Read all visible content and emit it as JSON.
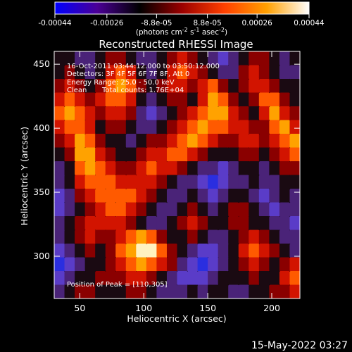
{
  "colorbar": {
    "tick_labels": [
      "-0.00044",
      "-0.00026",
      "-8.8e-05",
      "8.8e-05",
      "0.00026",
      "0.00044"
    ],
    "tick_values": [
      -0.00044,
      -0.00026,
      -8.8e-05,
      8.8e-05,
      0.00026,
      0.00044
    ],
    "range": [
      -0.00044,
      0.00044
    ],
    "units_prefix": "(photons cm",
    "units_exp1": "-2",
    "units_mid": " s",
    "units_exp2": "-1",
    "units_mid2": " asec",
    "units_exp3": "-2",
    "units_suffix": ")",
    "colors": [
      "#0000ff",
      "#4b0096",
      "#000000",
      "#9b0000",
      "#ff4000",
      "#ffa000",
      "#ffffff"
    ]
  },
  "chart_data": {
    "type": "heatmap",
    "title": "Reconstructed RHESSI Image",
    "xlabel": "Heliocentric X (arcsec)",
    "ylabel": "Heliocentric Y (arcsec)",
    "xlim": [
      30,
      222
    ],
    "ylim": [
      267,
      460
    ],
    "x_ticks": [
      50,
      100,
      150,
      200
    ],
    "y_ticks": [
      300,
      350,
      400,
      450
    ],
    "x_tick_labels": [
      "50",
      "100",
      "150",
      "200"
    ],
    "y_tick_labels": [
      "300",
      "350",
      "400",
      "450"
    ],
    "peak": [
      110,
      305
    ],
    "rows": [
      [
        0,
        0,
        -1,
        -1,
        0,
        1,
        1,
        0,
        -1,
        -1,
        0,
        1,
        2,
        1,
        0,
        -1,
        -2,
        -1,
        0,
        1,
        1,
        0,
        -1,
        0
      ],
      [
        0,
        1,
        0,
        -1,
        0,
        2,
        3,
        2,
        0,
        -1,
        0,
        2,
        3,
        2,
        1,
        0,
        -1,
        -1,
        1,
        2,
        1,
        0,
        -1,
        -1
      ],
      [
        1,
        2,
        1,
        0,
        1,
        3,
        4,
        3,
        1,
        0,
        1,
        2,
        2,
        1,
        2,
        3,
        1,
        0,
        1,
        2,
        2,
        1,
        0,
        0
      ],
      [
        2,
        3,
        2,
        1,
        2,
        3,
        3,
        2,
        0,
        -1,
        0,
        1,
        1,
        0,
        2,
        4,
        3,
        1,
        0,
        1,
        3,
        3,
        1,
        0
      ],
      [
        3,
        4,
        3,
        2,
        1,
        2,
        2,
        1,
        -1,
        -2,
        -1,
        0,
        1,
        2,
        3,
        4,
        4,
        2,
        1,
        0,
        2,
        4,
        2,
        1
      ],
      [
        2,
        3,
        3,
        2,
        0,
        1,
        1,
        0,
        -1,
        -1,
        0,
        1,
        2,
        3,
        4,
        3,
        3,
        2,
        2,
        1,
        1,
        3,
        4,
        2
      ],
      [
        1,
        2,
        4,
        3,
        1,
        0,
        0,
        -1,
        0,
        1,
        1,
        2,
        3,
        4,
        3,
        2,
        1,
        1,
        2,
        2,
        1,
        2,
        3,
        4
      ],
      [
        0,
        1,
        4,
        4,
        2,
        1,
        0,
        0,
        1,
        2,
        2,
        3,
        3,
        2,
        1,
        0,
        0,
        0,
        1,
        1,
        0,
        1,
        2,
        3
      ],
      [
        -1,
        0,
        3,
        4,
        3,
        2,
        1,
        1,
        2,
        3,
        2,
        2,
        1,
        0,
        -1,
        -1,
        -2,
        -1,
        0,
        0,
        -1,
        0,
        1,
        1
      ],
      [
        -1,
        0,
        2,
        3,
        3,
        3,
        2,
        2,
        2,
        2,
        1,
        0,
        -1,
        -1,
        -2,
        -3,
        -2,
        -1,
        -1,
        0,
        -1,
        -1,
        0,
        0
      ],
      [
        -2,
        -1,
        1,
        2,
        3,
        3,
        3,
        3,
        2,
        1,
        0,
        -1,
        -1,
        0,
        -1,
        -2,
        -1,
        0,
        0,
        -1,
        -2,
        -1,
        0,
        -1
      ],
      [
        -2,
        -1,
        0,
        1,
        2,
        3,
        3,
        2,
        1,
        0,
        -1,
        -1,
        0,
        1,
        0,
        -1,
        0,
        1,
        1,
        0,
        -1,
        -2,
        -1,
        -1
      ],
      [
        -1,
        0,
        1,
        2,
        2,
        2,
        2,
        1,
        0,
        -1,
        -1,
        0,
        1,
        2,
        1,
        0,
        0,
        1,
        1,
        0,
        0,
        -1,
        -1,
        -2
      ],
      [
        -1,
        0,
        1,
        2,
        1,
        1,
        2,
        3,
        4,
        3,
        1,
        0,
        0,
        1,
        0,
        -1,
        -1,
        0,
        1,
        2,
        1,
        0,
        -1,
        -1
      ],
      [
        -2,
        -1,
        0,
        1,
        0,
        1,
        3,
        4,
        5,
        5,
        3,
        1,
        0,
        -1,
        -2,
        -2,
        -1,
        0,
        2,
        3,
        2,
        1,
        0,
        -1
      ],
      [
        -3,
        -2,
        -1,
        0,
        0,
        1,
        2,
        3,
        4,
        3,
        2,
        1,
        -1,
        -2,
        -3,
        -2,
        -1,
        0,
        1,
        2,
        1,
        0,
        1,
        2
      ],
      [
        -2,
        -1,
        0,
        0,
        1,
        1,
        1,
        2,
        2,
        1,
        0,
        -1,
        -2,
        -2,
        -2,
        -1,
        0,
        0,
        0,
        1,
        0,
        0,
        2,
        3
      ],
      [
        -1,
        0,
        1,
        1,
        0,
        0,
        0,
        1,
        1,
        0,
        -1,
        -1,
        -1,
        0,
        -1,
        0,
        0,
        -1,
        -1,
        0,
        0,
        1,
        1,
        2
      ]
    ]
  },
  "info": {
    "line1": "16-Oct-2011 03:44:12.000 to 03:50:12.000",
    "line2": "Detectors: 3F 4F 5F 6F 7F 8F, Att 0",
    "line3": "Energy Range: 25.0 - 50.0 keV",
    "line4_a": "Clean",
    "line4_b": "Total counts: 1.76E+04",
    "peak_label": "Position of Peak = [110,305]"
  },
  "footer": {
    "date": "15-May-2022 03:27"
  }
}
